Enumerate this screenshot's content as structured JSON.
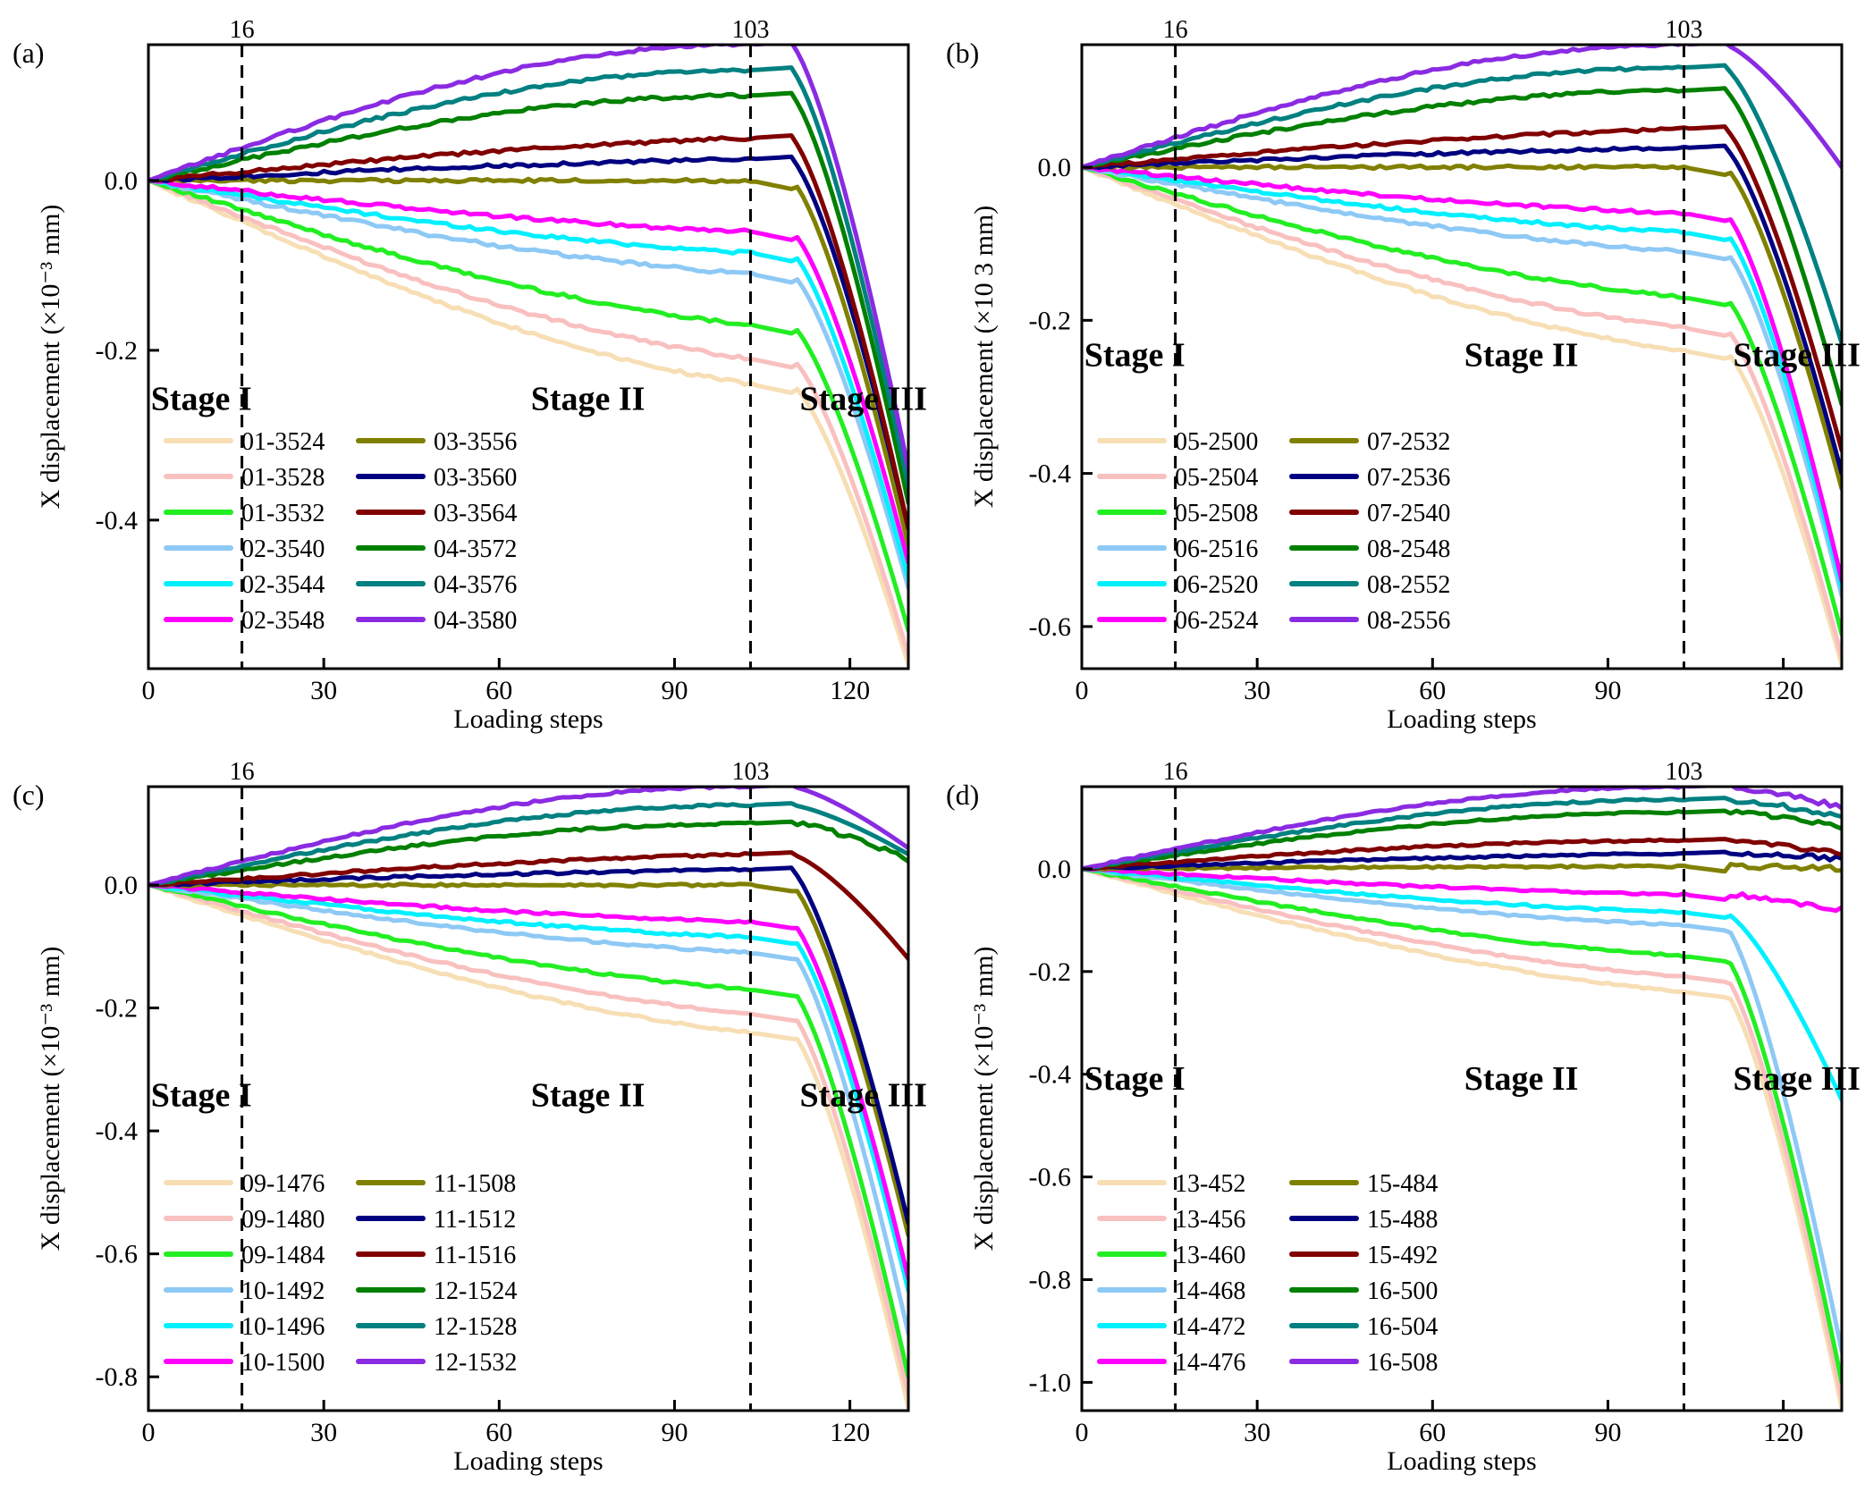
{
  "colors": {
    "s01": "#f7deb4",
    "s02": "#f9c0c0",
    "s03": "#22ee22",
    "s04": "#8ec9f5",
    "s05": "#00f0ff",
    "s06": "#ff00ff",
    "s07": "#808000",
    "s08": "#000080",
    "s09": "#800000",
    "s10": "#008000",
    "s11": "#008080",
    "s12": "#8a2be2"
  },
  "chart_data": [
    {
      "type": "line",
      "panel_label": "(a)",
      "xlabel": "Loading steps",
      "ylabel": "X displacement (×10⁻³ mm)",
      "xlim": [
        0,
        130
      ],
      "ylim": [
        -0.575,
        0.16
      ],
      "xticks": [
        0,
        30,
        60,
        90,
        120
      ],
      "yticks": [
        -0.4,
        -0.2,
        0.0
      ],
      "ytick_labels": [
        "-0.4",
        "-0.2",
        "0.0"
      ],
      "vlines": [
        {
          "x": 16,
          "label": "16"
        },
        {
          "x": 103,
          "label": "103"
        }
      ],
      "stage_labels": [
        {
          "text": "Stage I",
          "x": 5,
          "y": -0.27
        },
        {
          "text": "Stage II",
          "x": 70,
          "y": -0.27
        },
        {
          "text": "Stage III",
          "x": 116,
          "y": -0.27
        }
      ],
      "legend_position": "lower-left",
      "series": [
        {
          "name": "01-3524",
          "color_key": "s01",
          "end": -0.24,
          "final": -0.57
        },
        {
          "name": "01-3528",
          "color_key": "s02",
          "end": -0.21,
          "final": -0.56
        },
        {
          "name": "01-3532",
          "color_key": "s03",
          "end": -0.17,
          "final": -0.53
        },
        {
          "name": "02-3540",
          "color_key": "s04",
          "end": -0.11,
          "final": -0.48
        },
        {
          "name": "02-3544",
          "color_key": "s05",
          "end": -0.085,
          "final": -0.47
        },
        {
          "name": "02-3548",
          "color_key": "s06",
          "end": -0.06,
          "final": -0.45
        },
        {
          "name": "03-3556",
          "color_key": "s07",
          "end": 0.0,
          "final": -0.43
        },
        {
          "name": "03-3560",
          "color_key": "s08",
          "end": 0.025,
          "final": -0.41
        },
        {
          "name": "03-3564",
          "color_key": "s09",
          "end": 0.05,
          "final": -0.41
        },
        {
          "name": "04-3572",
          "color_key": "s10",
          "end": 0.1,
          "final": -0.38
        },
        {
          "name": "04-3576",
          "color_key": "s11",
          "end": 0.13,
          "final": -0.36
        },
        {
          "name": "04-3580",
          "color_key": "s12",
          "end": 0.16,
          "final": -0.34
        }
      ]
    },
    {
      "type": "line",
      "panel_label": "(b)",
      "xlabel": "Loading steps",
      "ylabel": "X displacement (×10 3 mm)",
      "xlim": [
        0,
        130
      ],
      "ylim": [
        -0.655,
        0.16
      ],
      "xticks": [
        0,
        30,
        60,
        90,
        120
      ],
      "yticks": [
        -0.6,
        -0.4,
        -0.2,
        0.0
      ],
      "ytick_labels": [
        "-0.6",
        "-0.4",
        "-0.2",
        "0.0"
      ],
      "vlines": [
        {
          "x": 16,
          "label": "16"
        },
        {
          "x": 103,
          "label": "103"
        }
      ],
      "stage_labels": [
        {
          "text": "Stage I",
          "x": 5,
          "y": -0.26
        },
        {
          "text": "Stage II",
          "x": 70,
          "y": -0.26
        },
        {
          "text": "Stage III",
          "x": 116,
          "y": -0.26
        }
      ],
      "legend_position": "lower-left",
      "series": [
        {
          "name": "05-2500",
          "color_key": "s01",
          "end": -0.24,
          "final": -0.65
        },
        {
          "name": "05-2504",
          "color_key": "s02",
          "end": -0.21,
          "final": -0.64
        },
        {
          "name": "05-2508",
          "color_key": "s03",
          "end": -0.17,
          "final": -0.61
        },
        {
          "name": "06-2516",
          "color_key": "s04",
          "end": -0.11,
          "final": -0.56
        },
        {
          "name": "06-2520",
          "color_key": "s05",
          "end": -0.085,
          "final": -0.55
        },
        {
          "name": "06-2524",
          "color_key": "s06",
          "end": -0.06,
          "final": -0.54
        },
        {
          "name": "07-2532",
          "color_key": "s07",
          "end": 0.0,
          "final": -0.42
        },
        {
          "name": "07-2536",
          "color_key": "s08",
          "end": 0.025,
          "final": -0.4
        },
        {
          "name": "07-2540",
          "color_key": "s09",
          "end": 0.05,
          "final": -0.37
        },
        {
          "name": "08-2548",
          "color_key": "s10",
          "end": 0.1,
          "final": -0.31
        },
        {
          "name": "08-2552",
          "color_key": "s11",
          "end": 0.13,
          "final": -0.23
        },
        {
          "name": "08-2556",
          "color_key": "s12",
          "end": 0.16,
          "final": 0.0
        }
      ]
    },
    {
      "type": "line",
      "panel_label": "(c)",
      "xlabel": "Loading steps",
      "ylabel": "X displacement (×10⁻³ mm)",
      "xlim": [
        0,
        130
      ],
      "ylim": [
        -0.855,
        0.16
      ],
      "xticks": [
        0,
        30,
        60,
        90,
        120
      ],
      "yticks": [
        -0.8,
        -0.6,
        -0.4,
        -0.2,
        0.0
      ],
      "ytick_labels": [
        "-0.8",
        "-0.6",
        "-0.4",
        "-0.2",
        "0.0"
      ],
      "vlines": [
        {
          "x": 16,
          "label": "16"
        },
        {
          "x": 103,
          "label": "103"
        }
      ],
      "stage_labels": [
        {
          "text": "Stage I",
          "x": 5,
          "y": -0.36
        },
        {
          "text": "Stage II",
          "x": 70,
          "y": -0.36
        },
        {
          "text": "Stage III",
          "x": 116,
          "y": -0.36
        }
      ],
      "legend_position": "lower-left",
      "series": [
        {
          "name": "09-1476",
          "color_key": "s01",
          "end": -0.24,
          "final": -0.85
        },
        {
          "name": "09-1480",
          "color_key": "s02",
          "end": -0.21,
          "final": -0.83
        },
        {
          "name": "09-1484",
          "color_key": "s03",
          "end": -0.17,
          "final": -0.8
        },
        {
          "name": "10-1492",
          "color_key": "s04",
          "end": -0.11,
          "final": -0.73
        },
        {
          "name": "10-1496",
          "color_key": "s05",
          "end": -0.085,
          "final": -0.66
        },
        {
          "name": "10-1500",
          "color_key": "s06",
          "end": -0.06,
          "final": -0.64
        },
        {
          "name": "11-1508",
          "color_key": "s07",
          "end": 0.0,
          "final": -0.57
        },
        {
          "name": "11-1512",
          "color_key": "s08",
          "end": 0.025,
          "final": -0.55
        },
        {
          "name": "11-1516",
          "color_key": "s09",
          "end": 0.05,
          "final": -0.12
        },
        {
          "name": "12-1524",
          "color_key": "s10",
          "end": 0.1,
          "final": 0.04
        },
        {
          "name": "12-1528",
          "color_key": "s11",
          "end": 0.13,
          "final": 0.05
        },
        {
          "name": "12-1532",
          "color_key": "s12",
          "end": 0.16,
          "final": 0.06
        }
      ]
    },
    {
      "type": "line",
      "panel_label": "(d)",
      "xlabel": "Loading steps",
      "ylabel": "X displacement (×10⁻³ mm)",
      "xlim": [
        0,
        130
      ],
      "ylim": [
        -1.055,
        0.16
      ],
      "xticks": [
        0,
        30,
        60,
        90,
        120
      ],
      "yticks": [
        -1.0,
        -0.8,
        -0.6,
        -0.4,
        -0.2,
        0.0
      ],
      "ytick_labels": [
        "-1.0",
        "-0.8",
        "-0.6",
        "-0.4",
        "-0.2",
        "0.0"
      ],
      "vlines": [
        {
          "x": 16,
          "label": "16"
        },
        {
          "x": 103,
          "label": "103"
        }
      ],
      "stage_labels": [
        {
          "text": "Stage I",
          "x": 5,
          "y": -0.43
        },
        {
          "text": "Stage II",
          "x": 70,
          "y": -0.43
        },
        {
          "text": "Stage III",
          "x": 116,
          "y": -0.43
        }
      ],
      "legend_position": "lower-left",
      "series": [
        {
          "name": "13-452",
          "color_key": "s01",
          "end": -0.24,
          "final": -1.05
        },
        {
          "name": "13-456",
          "color_key": "s02",
          "end": -0.21,
          "final": -1.03
        },
        {
          "name": "13-460",
          "color_key": "s03",
          "end": -0.17,
          "final": -1.0
        },
        {
          "name": "14-468",
          "color_key": "s04",
          "end": -0.11,
          "final": -0.94
        },
        {
          "name": "14-472",
          "color_key": "s05",
          "end": -0.085,
          "final": -0.45
        },
        {
          "name": "14-476",
          "color_key": "s06",
          "end": -0.05,
          "final": -0.08
        },
        {
          "name": "15-484",
          "color_key": "s07",
          "end": 0.005,
          "final": 0.0
        },
        {
          "name": "15-488",
          "color_key": "s08",
          "end": 0.03,
          "final": 0.02
        },
        {
          "name": "15-492",
          "color_key": "s09",
          "end": 0.055,
          "final": 0.03
        },
        {
          "name": "16-500",
          "color_key": "s10",
          "end": 0.11,
          "final": 0.08
        },
        {
          "name": "16-504",
          "color_key": "s11",
          "end": 0.135,
          "final": 0.1
        },
        {
          "name": "16-508",
          "color_key": "s12",
          "end": 0.16,
          "final": 0.12
        }
      ]
    }
  ]
}
